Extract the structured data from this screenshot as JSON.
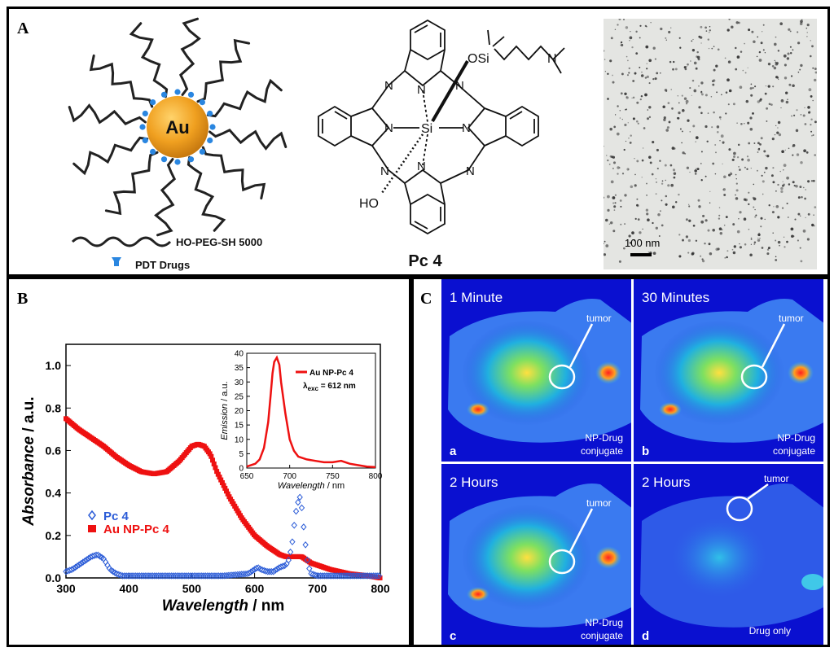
{
  "panelA": {
    "label": "A",
    "schematic": {
      "core_label": "Au",
      "legend_peg": "HO-PEG-SH 5000",
      "legend_drug": "PDT Drugs"
    },
    "molecule": {
      "name": "Pc 4",
      "atoms": {
        "osi": "OSi",
        "ho": "HO",
        "si": "Si",
        "n_amine": "N",
        "n": "N"
      }
    },
    "tem": {
      "scalebar": "100 nm"
    }
  },
  "panelB": {
    "label": "B",
    "chart_data": [
      {
        "type": "line",
        "xlabel_main": "Wavelength",
        "xlabel_unit": " / nm",
        "ylabel_main": "Absorbance",
        "ylabel_unit": " / a.u.",
        "xlim": [
          300,
          800
        ],
        "ylim": [
          0,
          1.1
        ],
        "xticks": [
          300,
          400,
          500,
          600,
          700,
          800
        ],
        "yticks": [
          0.0,
          0.2,
          0.4,
          0.6,
          0.8,
          1.0
        ],
        "legend_position": "lower-left",
        "series": [
          {
            "name": "Pc 4",
            "color": "#2a5bd7",
            "marker": "open-diamond",
            "x": [
              300,
              310,
              320,
              330,
              340,
              350,
              360,
              370,
              380,
              390,
              400,
              450,
              500,
              550,
              590,
              600,
              605,
              610,
              620,
              630,
              640,
              650,
              655,
              660,
              665,
              670,
              672,
              675,
              680,
              685,
              690,
              700,
              720,
              750,
              800
            ],
            "y": [
              0.03,
              0.04,
              0.06,
              0.08,
              0.1,
              0.11,
              0.09,
              0.04,
              0.02,
              0.01,
              0.01,
              0.01,
              0.01,
              0.01,
              0.02,
              0.04,
              0.05,
              0.04,
              0.03,
              0.03,
              0.05,
              0.06,
              0.09,
              0.17,
              0.3,
              0.37,
              0.38,
              0.33,
              0.18,
              0.06,
              0.02,
              0.01,
              0.01,
              0.01,
              0.01
            ]
          },
          {
            "name": "Au NP-Pc 4",
            "color": "#ee1111",
            "marker": "filled-square",
            "x": [
              300,
              320,
              340,
              360,
              380,
              400,
              420,
              440,
              460,
              480,
              500,
              510,
              520,
              530,
              540,
              560,
              580,
              600,
              620,
              640,
              650,
              660,
              670,
              675,
              680,
              690,
              700,
              720,
              750,
              780,
              800
            ],
            "y": [
              0.75,
              0.7,
              0.66,
              0.62,
              0.57,
              0.53,
              0.5,
              0.49,
              0.5,
              0.55,
              0.62,
              0.63,
              0.62,
              0.58,
              0.5,
              0.38,
              0.28,
              0.2,
              0.15,
              0.11,
              0.1,
              0.1,
              0.1,
              0.1,
              0.09,
              0.07,
              0.06,
              0.04,
              0.02,
              0.01,
              0.0
            ]
          }
        ]
      },
      {
        "type": "line",
        "xlabel_main": "Wavelength",
        "xlabel_unit": " / nm",
        "ylabel_main": "Emission",
        "ylabel_unit": " / a.u.",
        "xlim": [
          650,
          800
        ],
        "ylim": [
          0,
          40
        ],
        "xticks": [
          650,
          700,
          750,
          800
        ],
        "yticks": [
          0,
          5,
          10,
          15,
          20,
          25,
          30,
          35,
          40
        ],
        "legend_position": "top-right",
        "legend_note_main": "λ",
        "legend_note_sub": "exc",
        "legend_note_value": " = 612 nm",
        "series": [
          {
            "name": "Au NP-Pc 4",
            "color": "#ee1111",
            "x": [
              650,
              660,
              665,
              670,
              675,
              678,
              680,
              682,
              685,
              688,
              690,
              695,
              700,
              705,
              710,
              720,
              730,
              740,
              750,
              760,
              770,
              780,
              790,
              800
            ],
            "y": [
              0.5,
              1.5,
              3,
              7,
              16,
              26,
              33,
              37,
              38.5,
              36,
              30,
              19,
              10,
              6,
              4,
              3,
              2.5,
              2,
              2,
              2.5,
              1.5,
              1,
              0.5,
              0.3
            ]
          }
        ]
      }
    ]
  },
  "panelC": {
    "label": "C",
    "tumor_label": "tumor",
    "images": [
      {
        "time": "1 Minute",
        "letter": "a",
        "caption": "NP-Drug conjugate"
      },
      {
        "time": "30 Minutes",
        "letter": "b",
        "caption": "NP-Drug conjugate"
      },
      {
        "time": "2 Hours",
        "letter": "c",
        "caption": "NP-Drug conjugate"
      },
      {
        "time": "2 Hours",
        "letter": "d",
        "caption": "Drug only"
      }
    ]
  }
}
